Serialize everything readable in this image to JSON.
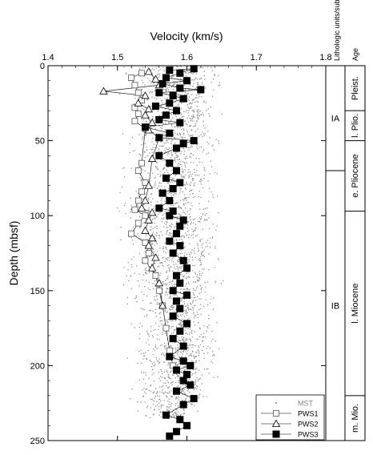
{
  "chart_data": {
    "type": "scatter",
    "xlabel": "Velocity (km/s)",
    "ylabel": "Depth (mbsf)",
    "xlim": [
      1.4,
      1.8
    ],
    "ylim": [
      250,
      0
    ],
    "x_ticks": [
      "1.4",
      "1.5",
      "1.6",
      "1.7",
      "1.8"
    ],
    "y_ticks": [
      "0",
      "50",
      "100",
      "150",
      "200",
      "250"
    ],
    "x_tick_values": [
      1.4,
      1.5,
      1.6,
      1.7,
      1.8
    ],
    "y_tick_values": [
      0,
      50,
      100,
      150,
      200,
      250
    ],
    "side_headers": {
      "units": "Lithologic units/subunits",
      "age": "Age"
    },
    "lithologic_units": [
      {
        "label": "IA",
        "top": 0,
        "bottom": 70
      },
      {
        "label": "IB",
        "top": 70,
        "bottom": 250
      }
    ],
    "ages": [
      {
        "label": "Pleist.",
        "top": 0,
        "bottom": 30
      },
      {
        "label": "l. Plio.",
        "top": 30,
        "bottom": 50
      },
      {
        "label": "e. Pliocene",
        "top": 50,
        "bottom": 97
      },
      {
        "label": "l. Miocene",
        "top": 97,
        "bottom": 220
      },
      {
        "label": "m. Mio.",
        "top": 220,
        "bottom": 250
      }
    ],
    "legend": {
      "position": "bottom-right"
    },
    "series": [
      {
        "name": "MST",
        "marker": "dot",
        "color": "#888888",
        "band": [
          [
            0,
            1.48,
            1.66
          ],
          [
            20,
            1.49,
            1.66
          ],
          [
            40,
            1.5,
            1.66
          ],
          [
            60,
            1.48,
            1.66
          ],
          [
            80,
            1.49,
            1.65
          ],
          [
            100,
            1.48,
            1.66
          ],
          [
            120,
            1.49,
            1.66
          ],
          [
            140,
            1.49,
            1.66
          ],
          [
            160,
            1.5,
            1.65
          ],
          [
            180,
            1.5,
            1.66
          ],
          [
            200,
            1.5,
            1.66
          ],
          [
            220,
            1.51,
            1.64
          ],
          [
            235,
            1.53,
            1.62
          ]
        ],
        "core": [
          [
            0,
            1.59
          ],
          [
            20,
            1.59
          ],
          [
            40,
            1.59
          ],
          [
            60,
            1.58
          ],
          [
            80,
            1.58
          ],
          [
            100,
            1.58
          ],
          [
            120,
            1.585
          ],
          [
            140,
            1.585
          ],
          [
            160,
            1.59
          ],
          [
            180,
            1.59
          ],
          [
            200,
            1.59
          ],
          [
            220,
            1.585
          ],
          [
            235,
            1.58
          ]
        ]
      },
      {
        "name": "PWS1",
        "marker": "open-square",
        "points": [
          [
            1.535,
            5
          ],
          [
            1.52,
            8
          ],
          [
            1.525,
            13
          ],
          [
            1.53,
            18
          ],
          [
            1.535,
            23
          ],
          [
            1.525,
            28
          ],
          [
            1.53,
            32
          ],
          [
            1.525,
            37
          ],
          [
            1.54,
            42
          ],
          [
            1.535,
            65
          ],
          [
            1.53,
            70
          ],
          [
            1.54,
            78
          ],
          [
            1.535,
            84
          ],
          [
            1.53,
            90
          ],
          [
            1.525,
            96
          ],
          [
            1.54,
            100
          ],
          [
            1.53,
            105
          ],
          [
            1.52,
            112
          ],
          [
            1.54,
            118
          ],
          [
            1.545,
            125
          ],
          [
            1.54,
            130
          ],
          [
            1.555,
            140
          ],
          [
            1.56,
            150
          ],
          [
            1.565,
            160
          ],
          [
            1.57,
            175
          ],
          [
            1.575,
            190
          ],
          [
            1.58,
            200
          ]
        ]
      },
      {
        "name": "PWS2",
        "marker": "open-triangle",
        "points": [
          [
            1.545,
            4
          ],
          [
            1.555,
            9
          ],
          [
            1.56,
            13
          ],
          [
            1.48,
            17
          ],
          [
            1.54,
            20
          ],
          [
            1.53,
            25
          ],
          [
            1.545,
            29
          ],
          [
            1.54,
            33
          ],
          [
            1.55,
            38
          ],
          [
            1.545,
            43
          ],
          [
            1.56,
            48
          ],
          [
            1.55,
            62
          ],
          [
            1.545,
            80
          ],
          [
            1.54,
            90
          ],
          [
            1.535,
            95
          ],
          [
            1.55,
            98
          ],
          [
            1.545,
            103
          ],
          [
            1.54,
            110
          ],
          [
            1.55,
            115
          ],
          [
            1.545,
            120
          ],
          [
            1.555,
            128
          ],
          [
            1.55,
            135
          ],
          [
            1.56,
            145
          ],
          [
            1.565,
            160
          ]
        ]
      },
      {
        "name": "PWS3",
        "marker": "filled-square",
        "points": [
          [
            1.575,
            3
          ],
          [
            1.61,
            2
          ],
          [
            1.59,
            5
          ],
          [
            1.57,
            8
          ],
          [
            1.6,
            10
          ],
          [
            1.565,
            12
          ],
          [
            1.59,
            15
          ],
          [
            1.62,
            16
          ],
          [
            1.56,
            18
          ],
          [
            1.58,
            20
          ],
          [
            1.595,
            22
          ],
          [
            1.575,
            25
          ],
          [
            1.555,
            27
          ],
          [
            1.585,
            30
          ],
          [
            1.57,
            33
          ],
          [
            1.56,
            36
          ],
          [
            1.59,
            38
          ],
          [
            1.54,
            41
          ],
          [
            1.575,
            45
          ],
          [
            1.56,
            48
          ],
          [
            1.61,
            50
          ],
          [
            1.595,
            52
          ],
          [
            1.585,
            55
          ],
          [
            1.56,
            60
          ],
          [
            1.575,
            65
          ],
          [
            1.585,
            70
          ],
          [
            1.57,
            75
          ],
          [
            1.59,
            78
          ],
          [
            1.58,
            82
          ],
          [
            1.565,
            85
          ],
          [
            1.575,
            90
          ],
          [
            1.56,
            95
          ],
          [
            1.58,
            97
          ],
          [
            1.575,
            100
          ],
          [
            1.595,
            103
          ],
          [
            1.59,
            107
          ],
          [
            1.585,
            112
          ],
          [
            1.575,
            117
          ],
          [
            1.59,
            120
          ],
          [
            1.58,
            125
          ],
          [
            1.595,
            130
          ],
          [
            1.6,
            135
          ],
          [
            1.585,
            140
          ],
          [
            1.59,
            145
          ],
          [
            1.58,
            150
          ],
          [
            1.6,
            153
          ],
          [
            1.585,
            157
          ],
          [
            1.59,
            162
          ],
          [
            1.58,
            167
          ],
          [
            1.6,
            172
          ],
          [
            1.59,
            177
          ],
          [
            1.58,
            182
          ],
          [
            1.595,
            187
          ],
          [
            1.575,
            194
          ],
          [
            1.595,
            197
          ],
          [
            1.605,
            200
          ],
          [
            1.585,
            203
          ],
          [
            1.6,
            206
          ],
          [
            1.595,
            210
          ],
          [
            1.605,
            213
          ],
          [
            1.585,
            217
          ],
          [
            1.61,
            222
          ],
          [
            1.595,
            226
          ],
          [
            1.57,
            233
          ],
          [
            1.59,
            236
          ],
          [
            1.6,
            240
          ],
          [
            1.585,
            244
          ],
          [
            1.575,
            247
          ]
        ]
      }
    ]
  }
}
